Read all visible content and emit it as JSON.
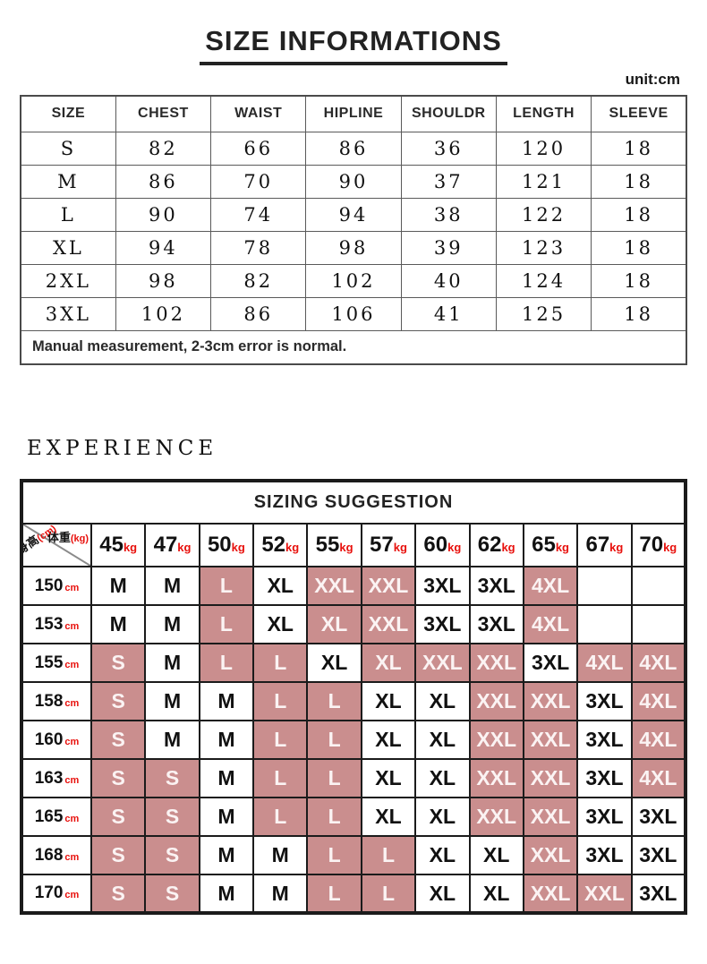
{
  "header": {
    "title": "SIZE INFORMATIONS",
    "unit_label": "unit:cm"
  },
  "size_table": {
    "columns": [
      "SIZE",
      "CHEST",
      "WAIST",
      "HIPLINE",
      "SHOULDR",
      "LENGTH",
      "SLEEVE"
    ],
    "rows": [
      [
        "S",
        "82",
        "66",
        "86",
        "36",
        "120",
        "18"
      ],
      [
        "M",
        "86",
        "70",
        "90",
        "37",
        "121",
        "18"
      ],
      [
        "L",
        "90",
        "74",
        "94",
        "38",
        "122",
        "18"
      ],
      [
        "XL",
        "94",
        "78",
        "98",
        "39",
        "123",
        "18"
      ],
      [
        "2XL",
        "98",
        "82",
        "102",
        "40",
        "124",
        "18"
      ],
      [
        "3XL",
        "102",
        "86",
        "106",
        "41",
        "125",
        "18"
      ]
    ],
    "note": "Manual measurement, 2-3cm error is normal."
  },
  "experience_label": "EXPERIENCE",
  "sizing_table": {
    "title": "SIZING SUGGESTION",
    "corner": {
      "weight_label": "体重",
      "weight_unit": "(kg)",
      "height_label": "身高",
      "height_unit": "(cm)"
    },
    "weight_unit_suffix": "kg",
    "height_unit_suffix": "cm",
    "weights": [
      "45",
      "47",
      "50",
      "52",
      "55",
      "57",
      "60",
      "62",
      "65",
      "67",
      "70"
    ],
    "rows": [
      {
        "height": "150",
        "cells": [
          {
            "size": "M",
            "highlighted": false
          },
          {
            "size": "M",
            "highlighted": false
          },
          {
            "size": "L",
            "highlighted": true
          },
          {
            "size": "XL",
            "highlighted": false
          },
          {
            "size": "XXL",
            "highlighted": true
          },
          {
            "size": "XXL",
            "highlighted": true
          },
          {
            "size": "3XL",
            "highlighted": false
          },
          {
            "size": "3XL",
            "highlighted": false
          },
          {
            "size": "4XL",
            "highlighted": true
          },
          {
            "size": "",
            "highlighted": false
          },
          {
            "size": "",
            "highlighted": false
          }
        ]
      },
      {
        "height": "153",
        "cells": [
          {
            "size": "M",
            "highlighted": false
          },
          {
            "size": "M",
            "highlighted": false
          },
          {
            "size": "L",
            "highlighted": true
          },
          {
            "size": "XL",
            "highlighted": false
          },
          {
            "size": "XL",
            "highlighted": true
          },
          {
            "size": "XXL",
            "highlighted": true
          },
          {
            "size": "3XL",
            "highlighted": false
          },
          {
            "size": "3XL",
            "highlighted": false
          },
          {
            "size": "4XL",
            "highlighted": true
          },
          {
            "size": "",
            "highlighted": false
          },
          {
            "size": "",
            "highlighted": false
          }
        ]
      },
      {
        "height": "155",
        "cells": [
          {
            "size": "S",
            "highlighted": true
          },
          {
            "size": "M",
            "highlighted": false
          },
          {
            "size": "L",
            "highlighted": true
          },
          {
            "size": "L",
            "highlighted": true
          },
          {
            "size": "XL",
            "highlighted": false
          },
          {
            "size": "XL",
            "highlighted": true
          },
          {
            "size": "XXL",
            "highlighted": true
          },
          {
            "size": "XXL",
            "highlighted": true
          },
          {
            "size": "3XL",
            "highlighted": false
          },
          {
            "size": "4XL",
            "highlighted": true
          },
          {
            "size": "4XL",
            "highlighted": true
          }
        ]
      },
      {
        "height": "158",
        "cells": [
          {
            "size": "S",
            "highlighted": true
          },
          {
            "size": "M",
            "highlighted": false
          },
          {
            "size": "M",
            "highlighted": false
          },
          {
            "size": "L",
            "highlighted": true
          },
          {
            "size": "L",
            "highlighted": true
          },
          {
            "size": "XL",
            "highlighted": false
          },
          {
            "size": "XL",
            "highlighted": false
          },
          {
            "size": "XXL",
            "highlighted": true
          },
          {
            "size": "XXL",
            "highlighted": true
          },
          {
            "size": "3XL",
            "highlighted": false
          },
          {
            "size": "4XL",
            "highlighted": true
          }
        ]
      },
      {
        "height": "160",
        "cells": [
          {
            "size": "S",
            "highlighted": true
          },
          {
            "size": "M",
            "highlighted": false
          },
          {
            "size": "M",
            "highlighted": false
          },
          {
            "size": "L",
            "highlighted": true
          },
          {
            "size": "L",
            "highlighted": true
          },
          {
            "size": "XL",
            "highlighted": false
          },
          {
            "size": "XL",
            "highlighted": false
          },
          {
            "size": "XXL",
            "highlighted": true
          },
          {
            "size": "XXL",
            "highlighted": true
          },
          {
            "size": "3XL",
            "highlighted": false
          },
          {
            "size": "4XL",
            "highlighted": true
          }
        ]
      },
      {
        "height": "163",
        "cells": [
          {
            "size": "S",
            "highlighted": true
          },
          {
            "size": "S",
            "highlighted": true
          },
          {
            "size": "M",
            "highlighted": false
          },
          {
            "size": "L",
            "highlighted": true
          },
          {
            "size": "L",
            "highlighted": true
          },
          {
            "size": "XL",
            "highlighted": false
          },
          {
            "size": "XL",
            "highlighted": false
          },
          {
            "size": "XXL",
            "highlighted": true
          },
          {
            "size": "XXL",
            "highlighted": true
          },
          {
            "size": "3XL",
            "highlighted": false
          },
          {
            "size": "4XL",
            "highlighted": true
          }
        ]
      },
      {
        "height": "165",
        "cells": [
          {
            "size": "S",
            "highlighted": true
          },
          {
            "size": "S",
            "highlighted": true
          },
          {
            "size": "M",
            "highlighted": false
          },
          {
            "size": "L",
            "highlighted": true
          },
          {
            "size": "L",
            "highlighted": true
          },
          {
            "size": "XL",
            "highlighted": false
          },
          {
            "size": "XL",
            "highlighted": false
          },
          {
            "size": "XXL",
            "highlighted": true
          },
          {
            "size": "XXL",
            "highlighted": true
          },
          {
            "size": "3XL",
            "highlighted": false
          },
          {
            "size": "3XL",
            "highlighted": false
          }
        ]
      },
      {
        "height": "168",
        "cells": [
          {
            "size": "S",
            "highlighted": true
          },
          {
            "size": "S",
            "highlighted": true
          },
          {
            "size": "M",
            "highlighted": false
          },
          {
            "size": "M",
            "highlighted": false
          },
          {
            "size": "L",
            "highlighted": true
          },
          {
            "size": "L",
            "highlighted": true
          },
          {
            "size": "XL",
            "highlighted": false
          },
          {
            "size": "XL",
            "highlighted": false
          },
          {
            "size": "XXL",
            "highlighted": true
          },
          {
            "size": "3XL",
            "highlighted": false
          },
          {
            "size": "3XL",
            "highlighted": false
          }
        ]
      },
      {
        "height": "170",
        "cells": [
          {
            "size": "S",
            "highlighted": true
          },
          {
            "size": "S",
            "highlighted": true
          },
          {
            "size": "M",
            "highlighted": false
          },
          {
            "size": "M",
            "highlighted": false
          },
          {
            "size": "L",
            "highlighted": true
          },
          {
            "size": "L",
            "highlighted": true
          },
          {
            "size": "XL",
            "highlighted": false
          },
          {
            "size": "XL",
            "highlighted": false
          },
          {
            "size": "XXL",
            "highlighted": true
          },
          {
            "size": "XXL",
            "highlighted": true
          },
          {
            "size": "3XL",
            "highlighted": false
          }
        ]
      }
    ],
    "colors": {
      "highlight_bg": "#ca8e8e",
      "highlight_text": "#fbf3f3",
      "accent_red": "#e8100c"
    }
  }
}
